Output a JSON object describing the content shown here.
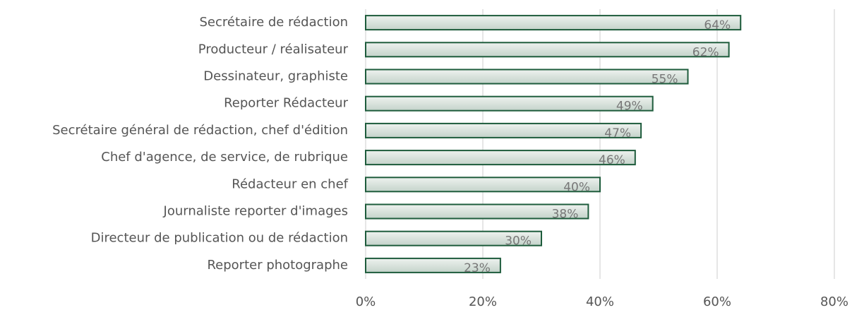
{
  "chart_data": {
    "type": "bar",
    "orientation": "horizontal",
    "categories": [
      "Secrétaire de rédaction",
      "Producteur / réalisateur",
      "Dessinateur, graphiste",
      "Reporter Rédacteur",
      "Secrétaire général de rédaction, chef d'édition",
      "Chef d'agence, de service, de rubrique",
      "Rédacteur en chef",
      "Journaliste reporter d'images",
      "Directeur de publication ou de rédaction",
      "Reporter photographe"
    ],
    "values": [
      64,
      62,
      55,
      49,
      47,
      46,
      40,
      38,
      30,
      23
    ],
    "value_labels": [
      "64%",
      "62%",
      "55%",
      "49%",
      "47%",
      "46%",
      "40%",
      "38%",
      "30%",
      "23%"
    ],
    "color": "#1e5c3c",
    "xlim": [
      0,
      80
    ],
    "xticks": [
      {
        "value": 0,
        "label": "0%"
      },
      {
        "value": 20,
        "label": "20%"
      },
      {
        "value": 40,
        "label": "40%"
      },
      {
        "value": 60,
        "label": "60%"
      },
      {
        "value": 80,
        "label": "80%"
      }
    ],
    "grid": true
  }
}
